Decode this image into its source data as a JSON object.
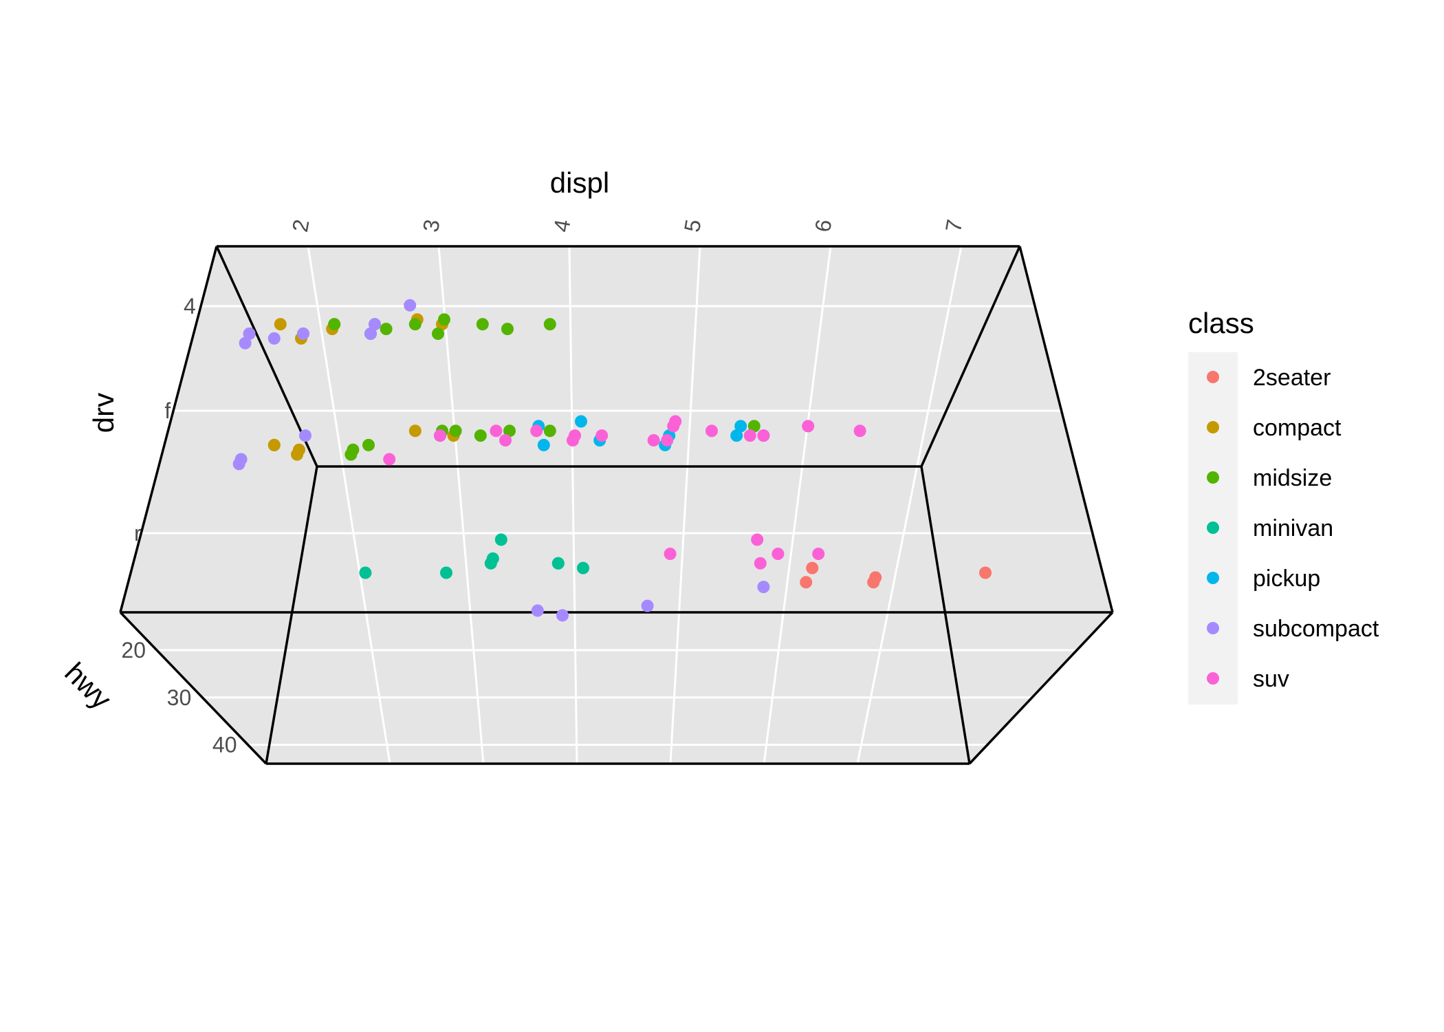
{
  "chart_data": {
    "type": "scatter",
    "projection": "3d",
    "axes": {
      "x": {
        "title": "displ",
        "ticks": [
          "2",
          "3",
          "4",
          "5",
          "6",
          "7"
        ],
        "range": [
          1.6,
          7.0
        ]
      },
      "y": {
        "title": "hwy",
        "ticks": [
          "20",
          "30",
          "40"
        ],
        "range": [
          12,
          44
        ]
      },
      "z": {
        "title": "drv",
        "ticks": [
          "r",
          "f",
          "4"
        ]
      }
    },
    "grid": true,
    "legend": {
      "title": "class",
      "position": "right",
      "entries": [
        {
          "name": "2seater",
          "color": "#F8766D"
        },
        {
          "name": "compact",
          "color": "#C49A00"
        },
        {
          "name": "midsize",
          "color": "#53B400"
        },
        {
          "name": "minivan",
          "color": "#00C094"
        },
        {
          "name": "pickup",
          "color": "#00B6EB"
        },
        {
          "name": "subcompact",
          "color": "#A58AFF"
        },
        {
          "name": "suv",
          "color": "#FB61D7"
        }
      ]
    },
    "series": [
      {
        "name": "2seater",
        "points": [
          {
            "displ": 5.7,
            "hwy": 26,
            "drv": "r"
          },
          {
            "displ": 5.7,
            "hwy": 23,
            "drv": "r"
          },
          {
            "displ": 6.2,
            "hwy": 26,
            "drv": "r"
          },
          {
            "displ": 6.2,
            "hwy": 25,
            "drv": "r"
          },
          {
            "displ": 7.0,
            "hwy": 24,
            "drv": "r"
          }
        ]
      },
      {
        "name": "compact",
        "points": [
          {
            "displ": 1.8,
            "hwy": 29,
            "drv": "f"
          },
          {
            "displ": 1.8,
            "hwy": 29,
            "drv": "f"
          },
          {
            "displ": 2.0,
            "hwy": 31,
            "drv": "f"
          },
          {
            "displ": 2.0,
            "hwy": 30,
            "drv": "f"
          },
          {
            "displ": 2.8,
            "hwy": 26,
            "drv": "f"
          },
          {
            "displ": 3.1,
            "hwy": 27,
            "drv": "f"
          },
          {
            "displ": 1.8,
            "hwy": 26,
            "drv": "4"
          },
          {
            "displ": 2.0,
            "hwy": 28,
            "drv": "4"
          },
          {
            "displ": 2.2,
            "hwy": 26,
            "drv": "4"
          },
          {
            "displ": 2.2,
            "hwy": 27,
            "drv": "4"
          },
          {
            "displ": 2.8,
            "hwy": 25,
            "drv": "4"
          },
          {
            "displ": 3.0,
            "hwy": 26,
            "drv": "4"
          },
          {
            "displ": 2.5,
            "hwy": 26,
            "drv": "4"
          },
          {
            "displ": 2.0,
            "hwy": 29,
            "drv": "4"
          }
        ]
      },
      {
        "name": "midsize",
        "points": [
          {
            "displ": 3.1,
            "hwy": 26,
            "drv": "f"
          },
          {
            "displ": 3.8,
            "hwy": 26,
            "drv": "f"
          },
          {
            "displ": 2.4,
            "hwy": 30,
            "drv": "f"
          },
          {
            "displ": 2.4,
            "hwy": 31,
            "drv": "f"
          },
          {
            "displ": 2.5,
            "hwy": 29,
            "drv": "f"
          },
          {
            "displ": 3.3,
            "hwy": 27,
            "drv": "f"
          },
          {
            "displ": 3.5,
            "hwy": 26,
            "drv": "f"
          },
          {
            "displ": 3.0,
            "hwy": 26,
            "drv": "f"
          },
          {
            "displ": 5.3,
            "hwy": 25,
            "drv": "f"
          },
          {
            "displ": 2.2,
            "hwy": 26,
            "drv": "4"
          },
          {
            "displ": 2.6,
            "hwy": 27,
            "drv": "4"
          },
          {
            "displ": 2.8,
            "hwy": 26,
            "drv": "4"
          },
          {
            "displ": 3.0,
            "hwy": 25,
            "drv": "4"
          },
          {
            "displ": 3.3,
            "hwy": 26,
            "drv": "4"
          },
          {
            "displ": 3.5,
            "hwy": 27,
            "drv": "4"
          },
          {
            "displ": 3.8,
            "hwy": 26,
            "drv": "4"
          },
          {
            "displ": 2.5,
            "hwy": 28,
            "drv": "4"
          },
          {
            "displ": 3.0,
            "hwy": 28,
            "drv": "4"
          }
        ]
      },
      {
        "name": "minivan",
        "points": [
          {
            "displ": 2.4,
            "hwy": 24,
            "drv": "r"
          },
          {
            "displ": 3.0,
            "hwy": 24,
            "drv": "r"
          },
          {
            "displ": 3.3,
            "hwy": 22,
            "drv": "r"
          },
          {
            "displ": 3.3,
            "hwy": 21,
            "drv": "r"
          },
          {
            "displ": 3.8,
            "hwy": 22,
            "drv": "r"
          },
          {
            "displ": 3.8,
            "hwy": 22,
            "drv": "r"
          },
          {
            "displ": 4.0,
            "hwy": 23,
            "drv": "r"
          },
          {
            "displ": 3.3,
            "hwy": 17,
            "drv": "r"
          }
        ]
      },
      {
        "name": "pickup",
        "points": [
          {
            "displ": 3.0,
            "hwy": 27,
            "drv": "f"
          },
          {
            "displ": 3.8,
            "hwy": 29,
            "drv": "f"
          },
          {
            "displ": 4.2,
            "hwy": 28,
            "drv": "f"
          },
          {
            "displ": 4.7,
            "hwy": 27,
            "drv": "f"
          },
          {
            "displ": 5.2,
            "hwy": 27,
            "drv": "f"
          },
          {
            "displ": 5.2,
            "hwy": 25,
            "drv": "f"
          },
          {
            "displ": 5.4,
            "hwy": 27,
            "drv": "f"
          },
          {
            "displ": 4.7,
            "hwy": 29,
            "drv": "f"
          },
          {
            "displ": 3.7,
            "hwy": 25,
            "drv": "f"
          },
          {
            "displ": 4.0,
            "hwy": 24,
            "drv": "f"
          }
        ]
      },
      {
        "name": "subcompact",
        "points": [
          {
            "displ": 1.6,
            "hwy": 33,
            "drv": "f"
          },
          {
            "displ": 1.6,
            "hwy": 32,
            "drv": "f"
          },
          {
            "displ": 2.0,
            "hwy": 27,
            "drv": "f"
          },
          {
            "displ": 1.6,
            "hwy": 28,
            "drv": "4"
          },
          {
            "displ": 1.6,
            "hwy": 30,
            "drv": "4"
          },
          {
            "displ": 1.8,
            "hwy": 29,
            "drv": "4"
          },
          {
            "displ": 1.6,
            "hwy": 28,
            "drv": "4"
          },
          {
            "displ": 2.0,
            "hwy": 28,
            "drv": "4"
          },
          {
            "displ": 2.5,
            "hwy": 28,
            "drv": "4"
          },
          {
            "displ": 2.5,
            "hwy": 26,
            "drv": "4"
          },
          {
            "displ": 2.7,
            "hwy": 22,
            "drv": "4"
          },
          {
            "displ": 3.8,
            "hwy": 32,
            "drv": "r"
          },
          {
            "displ": 4.0,
            "hwy": 33,
            "drv": "r"
          },
          {
            "displ": 4.6,
            "hwy": 31,
            "drv": "r"
          },
          {
            "displ": 5.4,
            "hwy": 27,
            "drv": "r"
          }
        ]
      },
      {
        "name": "suv",
        "points": [
          {
            "displ": 2.7,
            "hwy": 32,
            "drv": "f"
          },
          {
            "displ": 3.0,
            "hwy": 27,
            "drv": "f"
          },
          {
            "displ": 3.4,
            "hwy": 26,
            "drv": "f"
          },
          {
            "displ": 4.0,
            "hwy": 27,
            "drv": "f"
          },
          {
            "displ": 4.7,
            "hwy": 25,
            "drv": "f"
          },
          {
            "displ": 5.3,
            "hwy": 27,
            "drv": "f"
          },
          {
            "displ": 3.7,
            "hwy": 26,
            "drv": "f"
          },
          {
            "displ": 4.0,
            "hwy": 28,
            "drv": "f"
          },
          {
            "displ": 4.7,
            "hwy": 28,
            "drv": "f"
          },
          {
            "displ": 5.0,
            "hwy": 26,
            "drv": "f"
          },
          {
            "displ": 5.4,
            "hwy": 27,
            "drv": "f"
          },
          {
            "displ": 5.7,
            "hwy": 25,
            "drv": "f"
          },
          {
            "displ": 6.1,
            "hwy": 26,
            "drv": "f"
          },
          {
            "displ": 4.6,
            "hwy": 28,
            "drv": "f"
          },
          {
            "displ": 4.7,
            "hwy": 24,
            "drv": "f"
          },
          {
            "displ": 3.5,
            "hwy": 28,
            "drv": "f"
          },
          {
            "displ": 4.2,
            "hwy": 27,
            "drv": "f"
          },
          {
            "displ": 4.6,
            "hwy": 20,
            "drv": "r"
          },
          {
            "displ": 5.4,
            "hwy": 20,
            "drv": "r"
          },
          {
            "displ": 5.7,
            "hwy": 20,
            "drv": "r"
          },
          {
            "displ": 5.2,
            "hwy": 17,
            "drv": "r"
          },
          {
            "displ": 5.3,
            "hwy": 22,
            "drv": "r"
          }
        ]
      }
    ]
  }
}
